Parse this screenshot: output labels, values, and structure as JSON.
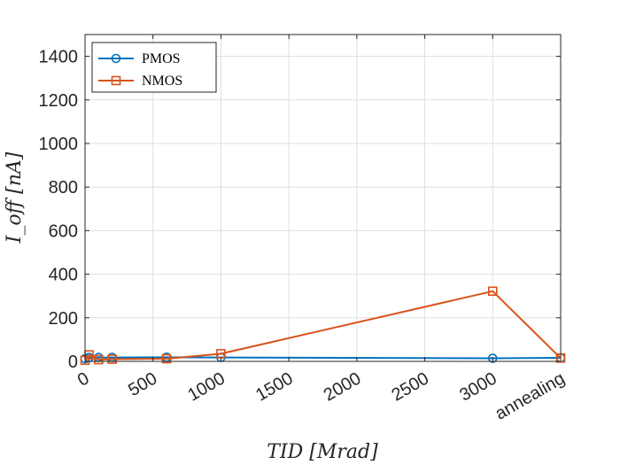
{
  "chart_data": {
    "type": "line",
    "xlabel": "TID [Mrad]",
    "ylabel": "I_off [nA]",
    "xlim": [
      0,
      3500
    ],
    "ylim": [
      0,
      1500
    ],
    "x_ticks": [
      0,
      500,
      1000,
      1500,
      2000,
      2500,
      3000,
      3500
    ],
    "x_tick_labels": [
      "0",
      "500",
      "1000",
      "1500",
      "2000",
      "2500",
      "3000",
      "annealing"
    ],
    "y_ticks": [
      0,
      200,
      400,
      600,
      800,
      1000,
      1200,
      1400
    ],
    "y_tick_labels": [
      "0",
      "200",
      "400",
      "600",
      "800",
      "1000",
      "1200",
      "1400"
    ],
    "grid": true,
    "legend_position": "top-left",
    "x": [
      0,
      30,
      100,
      200,
      600,
      1000,
      3000,
      3500
    ],
    "series": [
      {
        "name": "PMOS",
        "marker": "circle",
        "color": "#0072BD",
        "values": [
          12,
          18,
          18,
          18,
          19,
          18,
          14,
          16
        ]
      },
      {
        "name": "NMOS",
        "marker": "square",
        "color": "#D95319",
        "values": [
          5,
          30,
          8,
          10,
          12,
          35,
          322,
          15
        ]
      }
    ]
  }
}
